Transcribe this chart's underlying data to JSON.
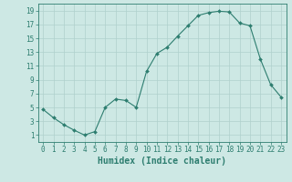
{
  "xlabel": "Humidex (Indice chaleur)",
  "x": [
    0,
    1,
    2,
    3,
    4,
    5,
    6,
    7,
    8,
    9,
    10,
    11,
    12,
    13,
    14,
    15,
    16,
    17,
    18,
    19,
    20,
    21,
    22,
    23
  ],
  "y": [
    4.7,
    3.5,
    2.5,
    1.7,
    1.0,
    1.5,
    5.0,
    6.2,
    6.0,
    5.0,
    10.2,
    12.8,
    13.7,
    15.3,
    16.8,
    18.3,
    18.7,
    18.9,
    18.8,
    17.2,
    16.8,
    12.0,
    8.3,
    6.5
  ],
  "line_color": "#2d7d6f",
  "marker": "D",
  "marker_size": 2.0,
  "bg_color": "#cde8e4",
  "grid_color": "#afd1cc",
  "axis_color": "#2d7d6f",
  "tick_color": "#2d7d6f",
  "ylim": [
    0,
    20
  ],
  "yticks": [
    1,
    3,
    5,
    7,
    9,
    11,
    13,
    15,
    17,
    19
  ],
  "xticks": [
    0,
    1,
    2,
    3,
    4,
    5,
    6,
    7,
    8,
    9,
    10,
    11,
    12,
    13,
    14,
    15,
    16,
    17,
    18,
    19,
    20,
    21,
    22,
    23
  ],
  "xtick_labels": [
    "0",
    "1",
    "2",
    "3",
    "4",
    "5",
    "6",
    "7",
    "8",
    "9",
    "10",
    "11",
    "12",
    "13",
    "14",
    "15",
    "16",
    "17",
    "18",
    "19",
    "20",
    "21",
    "22",
    "23"
  ],
  "label_fontsize": 7,
  "tick_fontsize": 5.5
}
